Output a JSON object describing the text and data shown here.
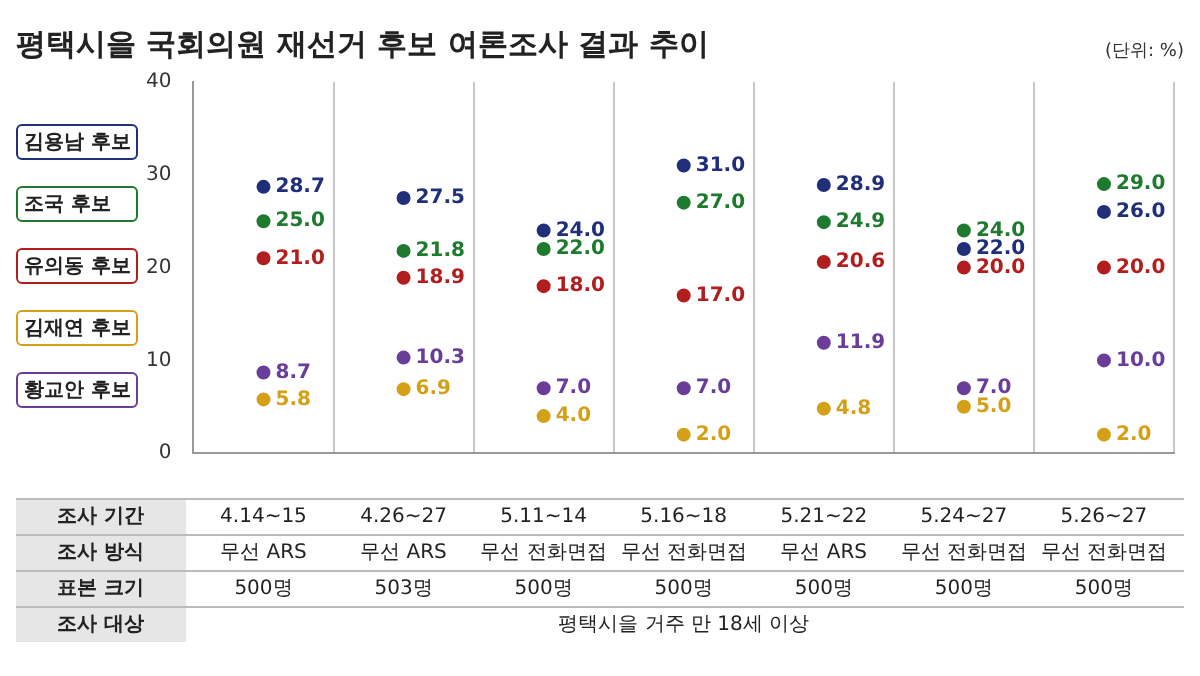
{
  "chart_data": {
    "type": "scatter",
    "title": "평택시을 국회의원 재선거 후보 여론조사 결과 추이",
    "categories": [
      null,
      null,
      null,
      null,
      null,
      null,
      null
    ],
    "series": [
      {
        "name": "김용남 후보",
        "color": "#1f2f7a",
        "values": [
          28.7,
          27.5,
          24.0,
          31.0,
          28.9,
          22.0,
          26.0
        ],
        "value_labels": [
          "28.7",
          "27.5",
          "24.0",
          "31.0",
          "28.9",
          "22.0",
          "26.0"
        ]
      },
      {
        "name": "조국 후보",
        "color": "#1e7a2e",
        "values": [
          25.0,
          21.8,
          22.0,
          27.0,
          24.9,
          24.0,
          29.0
        ],
        "value_labels": [
          "25.0",
          "21.8",
          "22.0",
          "27.0",
          "24.9",
          "24.0",
          "29.0"
        ]
      },
      {
        "name": "유의동 후보",
        "color": "#b21e1e",
        "values": [
          21.0,
          18.9,
          18.0,
          17.0,
          20.6,
          20.0,
          20.0
        ],
        "value_labels": [
          "21.0",
          "18.9",
          "18.0",
          "17.0",
          "20.6",
          "20.0",
          "20.0"
        ]
      },
      {
        "name": "김재연 후보",
        "color": "#d4a017",
        "values": [
          5.8,
          6.9,
          4.0,
          2.0,
          4.8,
          5.0,
          2.0
        ],
        "value_labels": [
          "5.8",
          "6.9",
          "4.0",
          "2.0",
          "4.8",
          "5.0",
          "2.0"
        ]
      },
      {
        "name": "황교안 후보",
        "color": "#6a3d9a",
        "values": [
          8.7,
          10.3,
          7.0,
          7.0,
          11.9,
          7.0,
          10.0
        ],
        "value_labels": [
          "8.7",
          "10.3",
          "7.0",
          "7.0",
          "11.9",
          "7.0",
          "10.0"
        ]
      }
    ],
    "ylim": [
      0,
      40
    ],
    "yticks": [
      0,
      10,
      20,
      30,
      40
    ],
    "grid": "x",
    "legend": "left",
    "marker": "circle",
    "annotations": [
      "(단위: %)",
      "조사 기간",
      "4.14~15",
      "4.26~27",
      "5.11~14",
      "5.16~18",
      "5.21~22",
      "5.24~27",
      "5.26~27",
      "조사 방식",
      "무선 ARS",
      "무선 ARS",
      "무선 전화면접",
      "무선 전화면접",
      "무선 ARS",
      "무선 전화면접",
      "무선 전화면접",
      "표본 크기",
      "500명",
      "503명",
      "500명",
      "500명",
      "500명",
      "500명",
      "500명",
      "조사 대상",
      "평택시을 거주 만 18세 이상"
    ]
  }
}
